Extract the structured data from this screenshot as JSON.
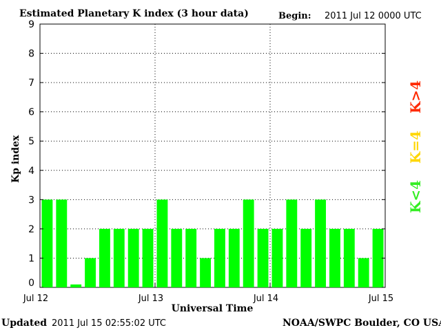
{
  "header": {
    "title": "Estimated Planetary K index (3 hour data)",
    "begin_label": "Begin:",
    "begin_value": "2011 Jul 12 0000 UTC"
  },
  "footer": {
    "updated_label": "Updated",
    "updated_value": "2011 Jul 15 02:55:02 UTC",
    "source": "NOAA/SWPC Boulder, CO USA"
  },
  "legend": [
    {
      "label": "K>4",
      "color": "#ff2a00"
    },
    {
      "label": "K=4",
      "color": "#ffd700"
    },
    {
      "label": "K<4",
      "color": "#33ee22"
    }
  ],
  "chart_data": {
    "type": "bar",
    "title": "Estimated Planetary K index (3 hour data)",
    "xlabel": "Universal Time",
    "ylabel": "Kp index",
    "ylim": [
      0,
      9
    ],
    "yticks": [
      0,
      1,
      2,
      3,
      4,
      5,
      6,
      7,
      8,
      9
    ],
    "x_ticks": [
      "Jul 12",
      "Jul 13",
      "Jul 14",
      "Jul 15"
    ],
    "grid": true,
    "bar_color": "#00ff00",
    "series": [
      {
        "values": [
          3,
          3,
          0.1,
          1,
          2,
          2,
          2,
          2,
          3,
          2,
          2,
          1,
          2,
          2,
          3,
          2,
          2,
          3,
          2,
          3,
          2,
          2,
          1,
          2
        ]
      }
    ]
  }
}
